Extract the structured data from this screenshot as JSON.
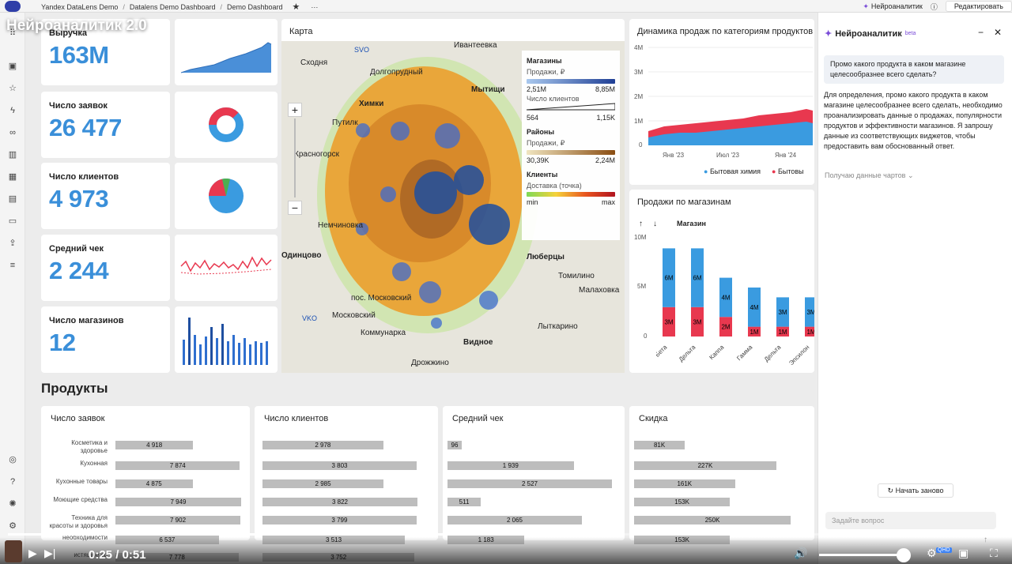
{
  "overlay_title": "Нейроаналитик 2.0",
  "breadcrumbs": [
    "Yandex DataLens Demo",
    "Datalens Demo Dashboard",
    "Demo Dashboard"
  ],
  "topbar": {
    "neuro_button": "Нейроаналитик",
    "edit_button": "Редактировать"
  },
  "kpis": [
    {
      "label": "Выручка",
      "value": "163M"
    },
    {
      "label": "Число заявок",
      "value": "26 477"
    },
    {
      "label": "Число клиентов",
      "value": "4 973"
    },
    {
      "label": "Средний чек",
      "value": "2 244"
    },
    {
      "label": "Число магазинов",
      "value": "12"
    }
  ],
  "map": {
    "title": "Карта",
    "places": [
      "Сходня",
      "Долгопрудный",
      "Ивантеевка",
      "Химки",
      "Мытищи",
      "Путилк",
      "Красногорск",
      "Немчиновка",
      "Одинцово",
      "Люберцы",
      "Томилино",
      "Малаховка",
      "пос. Московский",
      "Московский",
      "Коммунарка",
      "Лыткарино",
      "Видное",
      "Дрожжино",
      "VKO",
      "SVO"
    ],
    "legend": {
      "stores_header": "Магазины",
      "sales_label": "Продажи, ₽",
      "sales_min": "2,51M",
      "sales_max": "8,85M",
      "clients_label": "Число клиентов",
      "clients_min": "564",
      "clients_max": "1,15K",
      "districts_header": "Районы",
      "d_sales_label": "Продажи, ₽",
      "d_min": "30,39K",
      "d_max": "2,24M",
      "clients_header": "Клиенты",
      "delivery_label": "Доставка (точка)",
      "min": "min",
      "max": "max",
      "stores_color": "#1f4fa0",
      "districts_color": "#b57a22"
    }
  },
  "area_chart": {
    "title": "Динамика продаж по категориям продуктов",
    "yticks": [
      "4M",
      "3M",
      "2M",
      "1M",
      "0"
    ],
    "xticks": [
      "Янв '23",
      "Июл '23",
      "Янв '24"
    ],
    "legend": [
      "Бытовая химия",
      "Бытовы"
    ],
    "colors": [
      "#3a9be0",
      "#e8384f"
    ]
  },
  "store_chart": {
    "title": "Продажи по магазинам",
    "column_header": "Магазин",
    "yticks": [
      "10M",
      "5M",
      "0"
    ],
    "chart_data": {
      "type": "bar",
      "categories": [
        "Бета",
        "Дельта",
        "Каппа",
        "Гамма",
        "Дельта",
        "Эпсилон"
      ],
      "series": [
        {
          "values": [
            3,
            3,
            2,
            1,
            1,
            1
          ],
          "labels": [
            "3M",
            "3M",
            "2M",
            "1M",
            "1M",
            "1M"
          ],
          "color": "#e8384f"
        },
        {
          "values": [
            6,
            6,
            4,
            4,
            3,
            3
          ],
          "labels": [
            "6M",
            "6M",
            "4M",
            "4M",
            "3M",
            "3M"
          ],
          "color": "#3a9be0"
        }
      ],
      "ylim": [
        0,
        10
      ]
    }
  },
  "products": {
    "title": "Продукты",
    "categories": [
      "Косметика и здоровье",
      "Кухонная",
      "Кухонные товары",
      "Моющие средства",
      "Техника для красоты и здоровья",
      "необходимости",
      "истящие ср"
    ],
    "panels": [
      {
        "title": "Число заявок",
        "values": [
          "4 918",
          "7 874",
          "4 875",
          "7 949",
          "7 902",
          "6 537",
          "7 778"
        ],
        "nums": [
          4918,
          7874,
          4875,
          7949,
          7902,
          6537,
          7778
        ],
        "max": 8000
      },
      {
        "title": "Число клиентов",
        "values": [
          "2 978",
          "3 803",
          "2 985",
          "3 822",
          "3 799",
          "3 513",
          "3 752"
        ],
        "nums": [
          2978,
          3803,
          2985,
          3822,
          3799,
          3513,
          3752
        ],
        "max": 3900
      },
      {
        "title": "Средний чек",
        "values": [
          "96",
          "1 939",
          "2 527",
          "511",
          "2 065",
          "1 183",
          ""
        ],
        "nums": [
          96,
          1939,
          2527,
          511,
          2065,
          1183,
          0
        ],
        "max": 2600
      },
      {
        "title": "Скидка",
        "values": [
          "81K",
          "227K",
          "161K",
          "153K",
          "250K",
          "153K",
          ""
        ],
        "nums": [
          81,
          227,
          161,
          153,
          250,
          153,
          0
        ],
        "max": 270
      }
    ]
  },
  "assistant": {
    "title": "Нейроаналитик",
    "badge": "beta",
    "question": "Промо какого продукта в каком магазине целесообразнее всего сделать?",
    "answer": "Для определения, промо какого продукта в каком магазине целесообразнее всего сделать, необходимо проанализировать данные о продажах, популярности продуктов и эффективности магазинов. Я запрошу данные из соответствующих виджетов, чтобы предоставить вам обоснованный ответ.",
    "status": "Получаю данные чартов",
    "restart": "Начать заново",
    "placeholder": "Задайте вопрос"
  },
  "player": {
    "current": "0:25",
    "duration": "0:51",
    "progress": 0.49,
    "quality": "QHD"
  }
}
